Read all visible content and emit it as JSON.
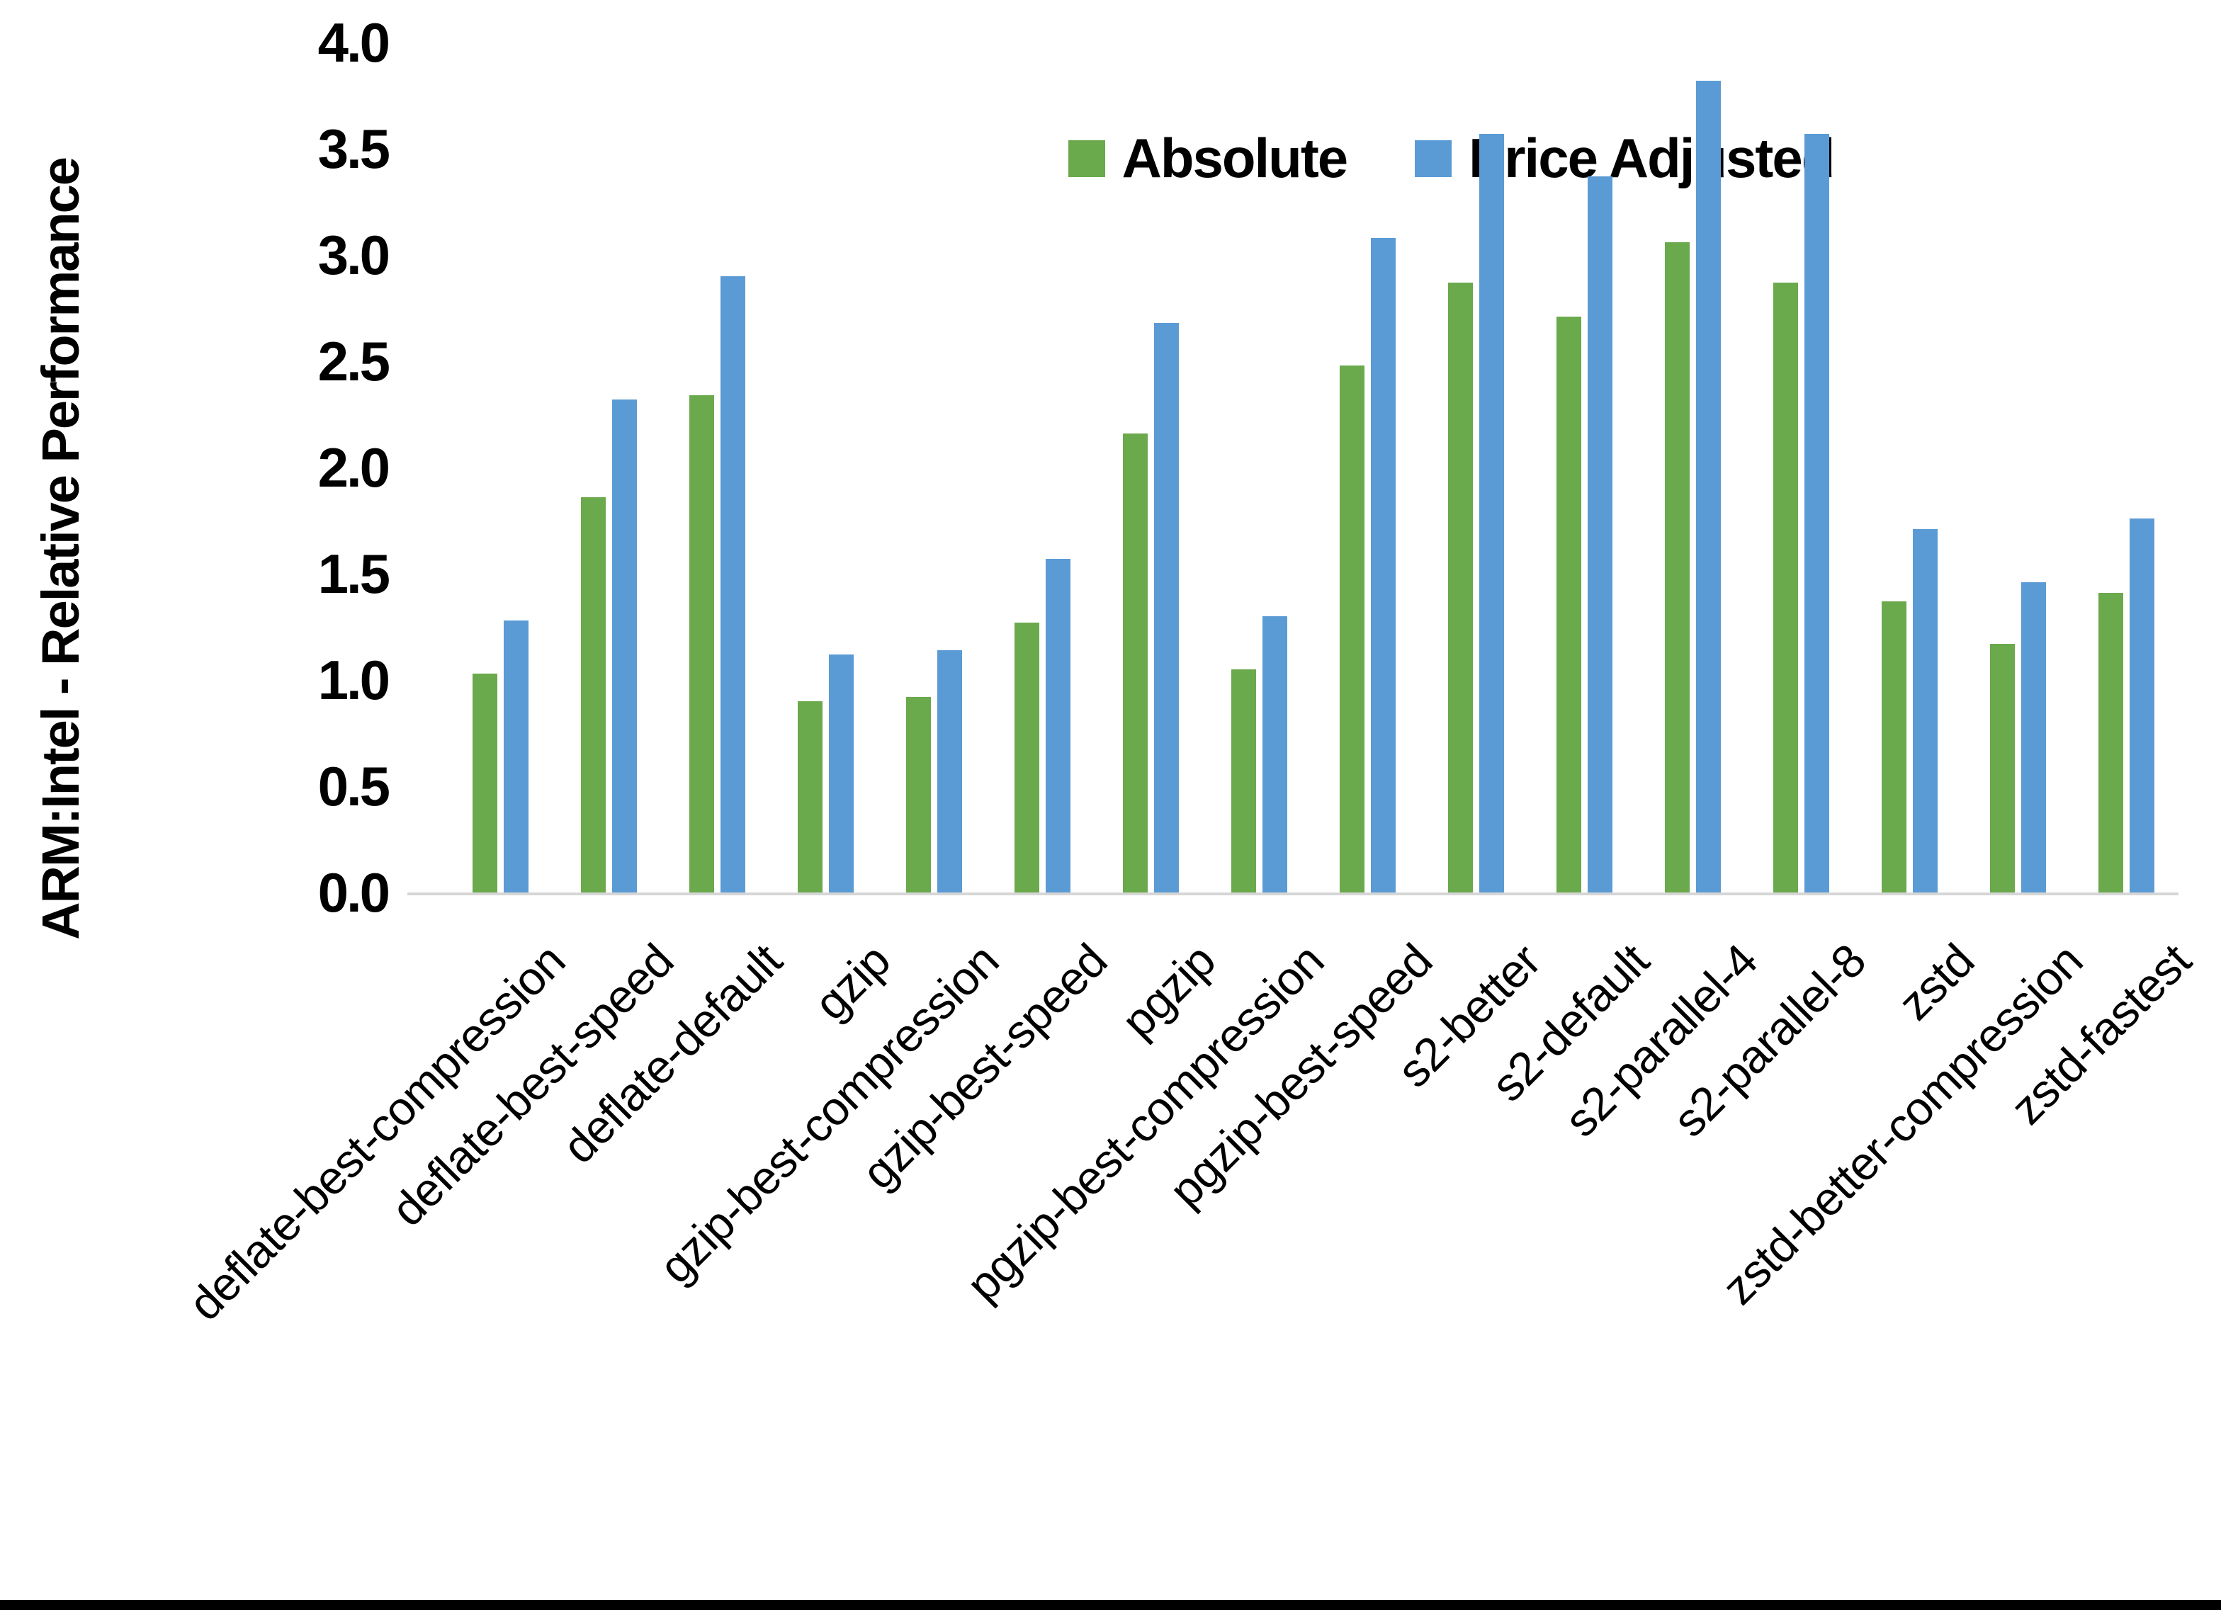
{
  "chart_data": {
    "type": "bar",
    "title": "",
    "xlabel": "",
    "ylabel": "ARM:Intel - Relative Performance",
    "ylim": [
      0.0,
      4.0
    ],
    "ytick_step": 0.5,
    "yticks": [
      "4.0",
      "3.5",
      "3.0",
      "2.5",
      "2.0",
      "1.5",
      "1.0",
      "0.5",
      "0.0"
    ],
    "grid": false,
    "legend_position": "top-center",
    "categories": [
      "deflate-best-compression",
      "deflate-best-speed",
      "deflate-default",
      "gzip",
      "gzip-best-compression",
      "gzip-best-speed",
      "pgzip",
      "pgzip-best-compression",
      "pgzip-best-speed",
      "s2-better",
      "s2-default",
      "s2-parallel-4",
      "s2-parallel-8",
      "zstd",
      "zstd-better-compression",
      "zstd-fastest"
    ],
    "series": [
      {
        "name": "Absolute",
        "color": "#6AA94C",
        "values": [
          1.03,
          1.86,
          2.34,
          0.9,
          0.92,
          1.27,
          2.16,
          1.05,
          2.48,
          2.87,
          2.71,
          3.06,
          2.87,
          1.37,
          1.17,
          1.41
        ]
      },
      {
        "name": "Price Adjusted",
        "color": "#5B9BD5",
        "values": [
          1.28,
          2.32,
          2.9,
          1.12,
          1.14,
          1.57,
          2.68,
          1.3,
          3.08,
          3.57,
          3.37,
          3.82,
          3.57,
          1.71,
          1.46,
          1.76
        ]
      }
    ]
  },
  "colors": {
    "background": "#FFFFFF",
    "axis_line": "#D6D6D6",
    "text": "#000000",
    "bottom_bar": "#000000"
  }
}
